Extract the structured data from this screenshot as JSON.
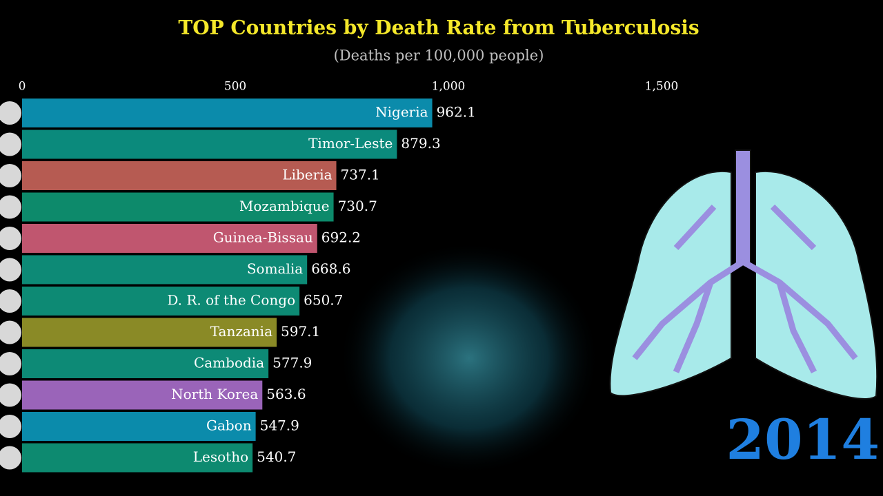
{
  "chart_data": {
    "type": "bar",
    "title": "TOP Countries by Death Rate from Tuberculosis",
    "subtitle": "(Deaths per 100,000 people)",
    "year": "2014",
    "categories": [
      "Nigeria",
      "Timor-Leste",
      "Liberia",
      "Mozambique",
      "Guinea-Bissau",
      "Somalia",
      "D. R. of the Congo",
      "Tanzania",
      "Cambodia",
      "North Korea",
      "Gabon",
      "Lesotho"
    ],
    "values": [
      962.1,
      879.3,
      737.1,
      730.7,
      692.2,
      668.6,
      650.7,
      597.1,
      577.9,
      563.6,
      547.9,
      540.7
    ],
    "colors": [
      "#0b8bab",
      "#0b8a7c",
      "#b65b52",
      "#0d8a6b",
      "#c0566f",
      "#0d8a76",
      "#0d8a74",
      "#8a8a26",
      "#0d8a76",
      "#9a64b9",
      "#0b8bab",
      "#0d8a70"
    ],
    "xlim": [
      0,
      2000
    ],
    "xticks": [
      0,
      500,
      {
        "value": 1000,
        "label": "1,000"
      },
      {
        "value": 1500,
        "label": "1,500"
      }
    ]
  }
}
